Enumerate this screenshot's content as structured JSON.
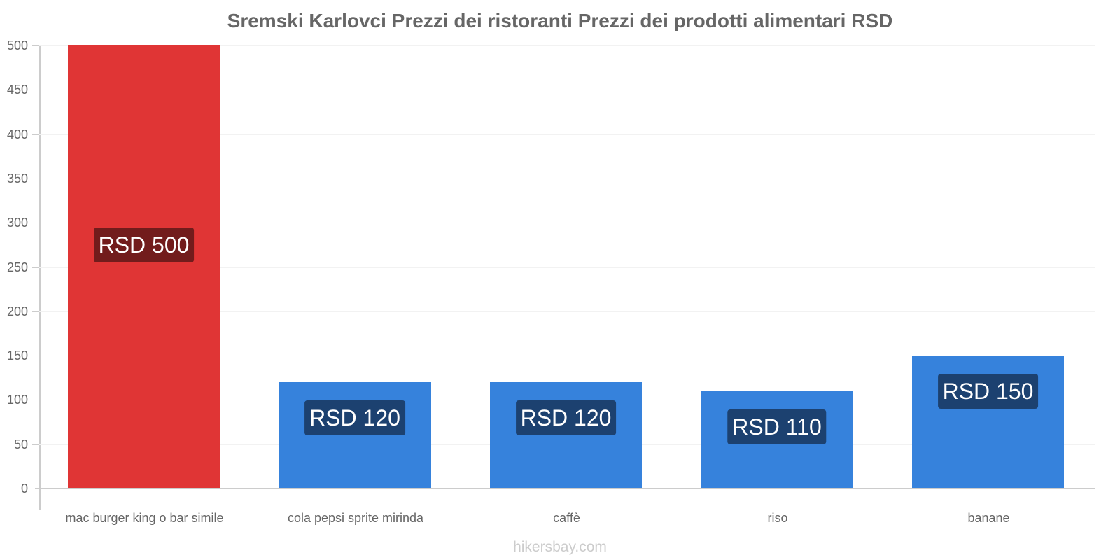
{
  "chart_data": {
    "type": "bar",
    "title": "Sremski Karlovci Prezzi dei ristoranti Prezzi dei prodotti alimentari RSD",
    "xlabel": "",
    "ylabel": "",
    "ylim": [
      0,
      500
    ],
    "yticks": [
      0,
      50,
      100,
      150,
      200,
      250,
      300,
      350,
      400,
      450,
      500
    ],
    "grid": true,
    "legend": null,
    "categories": [
      "mac burger king o bar simile",
      "cola pepsi sprite mirinda",
      "caffè",
      "riso",
      "banane"
    ],
    "values": [
      500,
      120,
      120,
      110,
      150
    ],
    "data_labels": [
      "RSD 500",
      "RSD 120",
      "RSD 120",
      "RSD 110",
      "RSD 150"
    ],
    "bar_colors": [
      "#e03535",
      "#3682dc",
      "#3682dc",
      "#3682dc",
      "#3682dc"
    ],
    "label_bg_colors": [
      "#721c1c",
      "#1c4170",
      "#1c4170",
      "#1c4170",
      "#1c4170"
    ]
  },
  "footer": "hikersbay.com"
}
